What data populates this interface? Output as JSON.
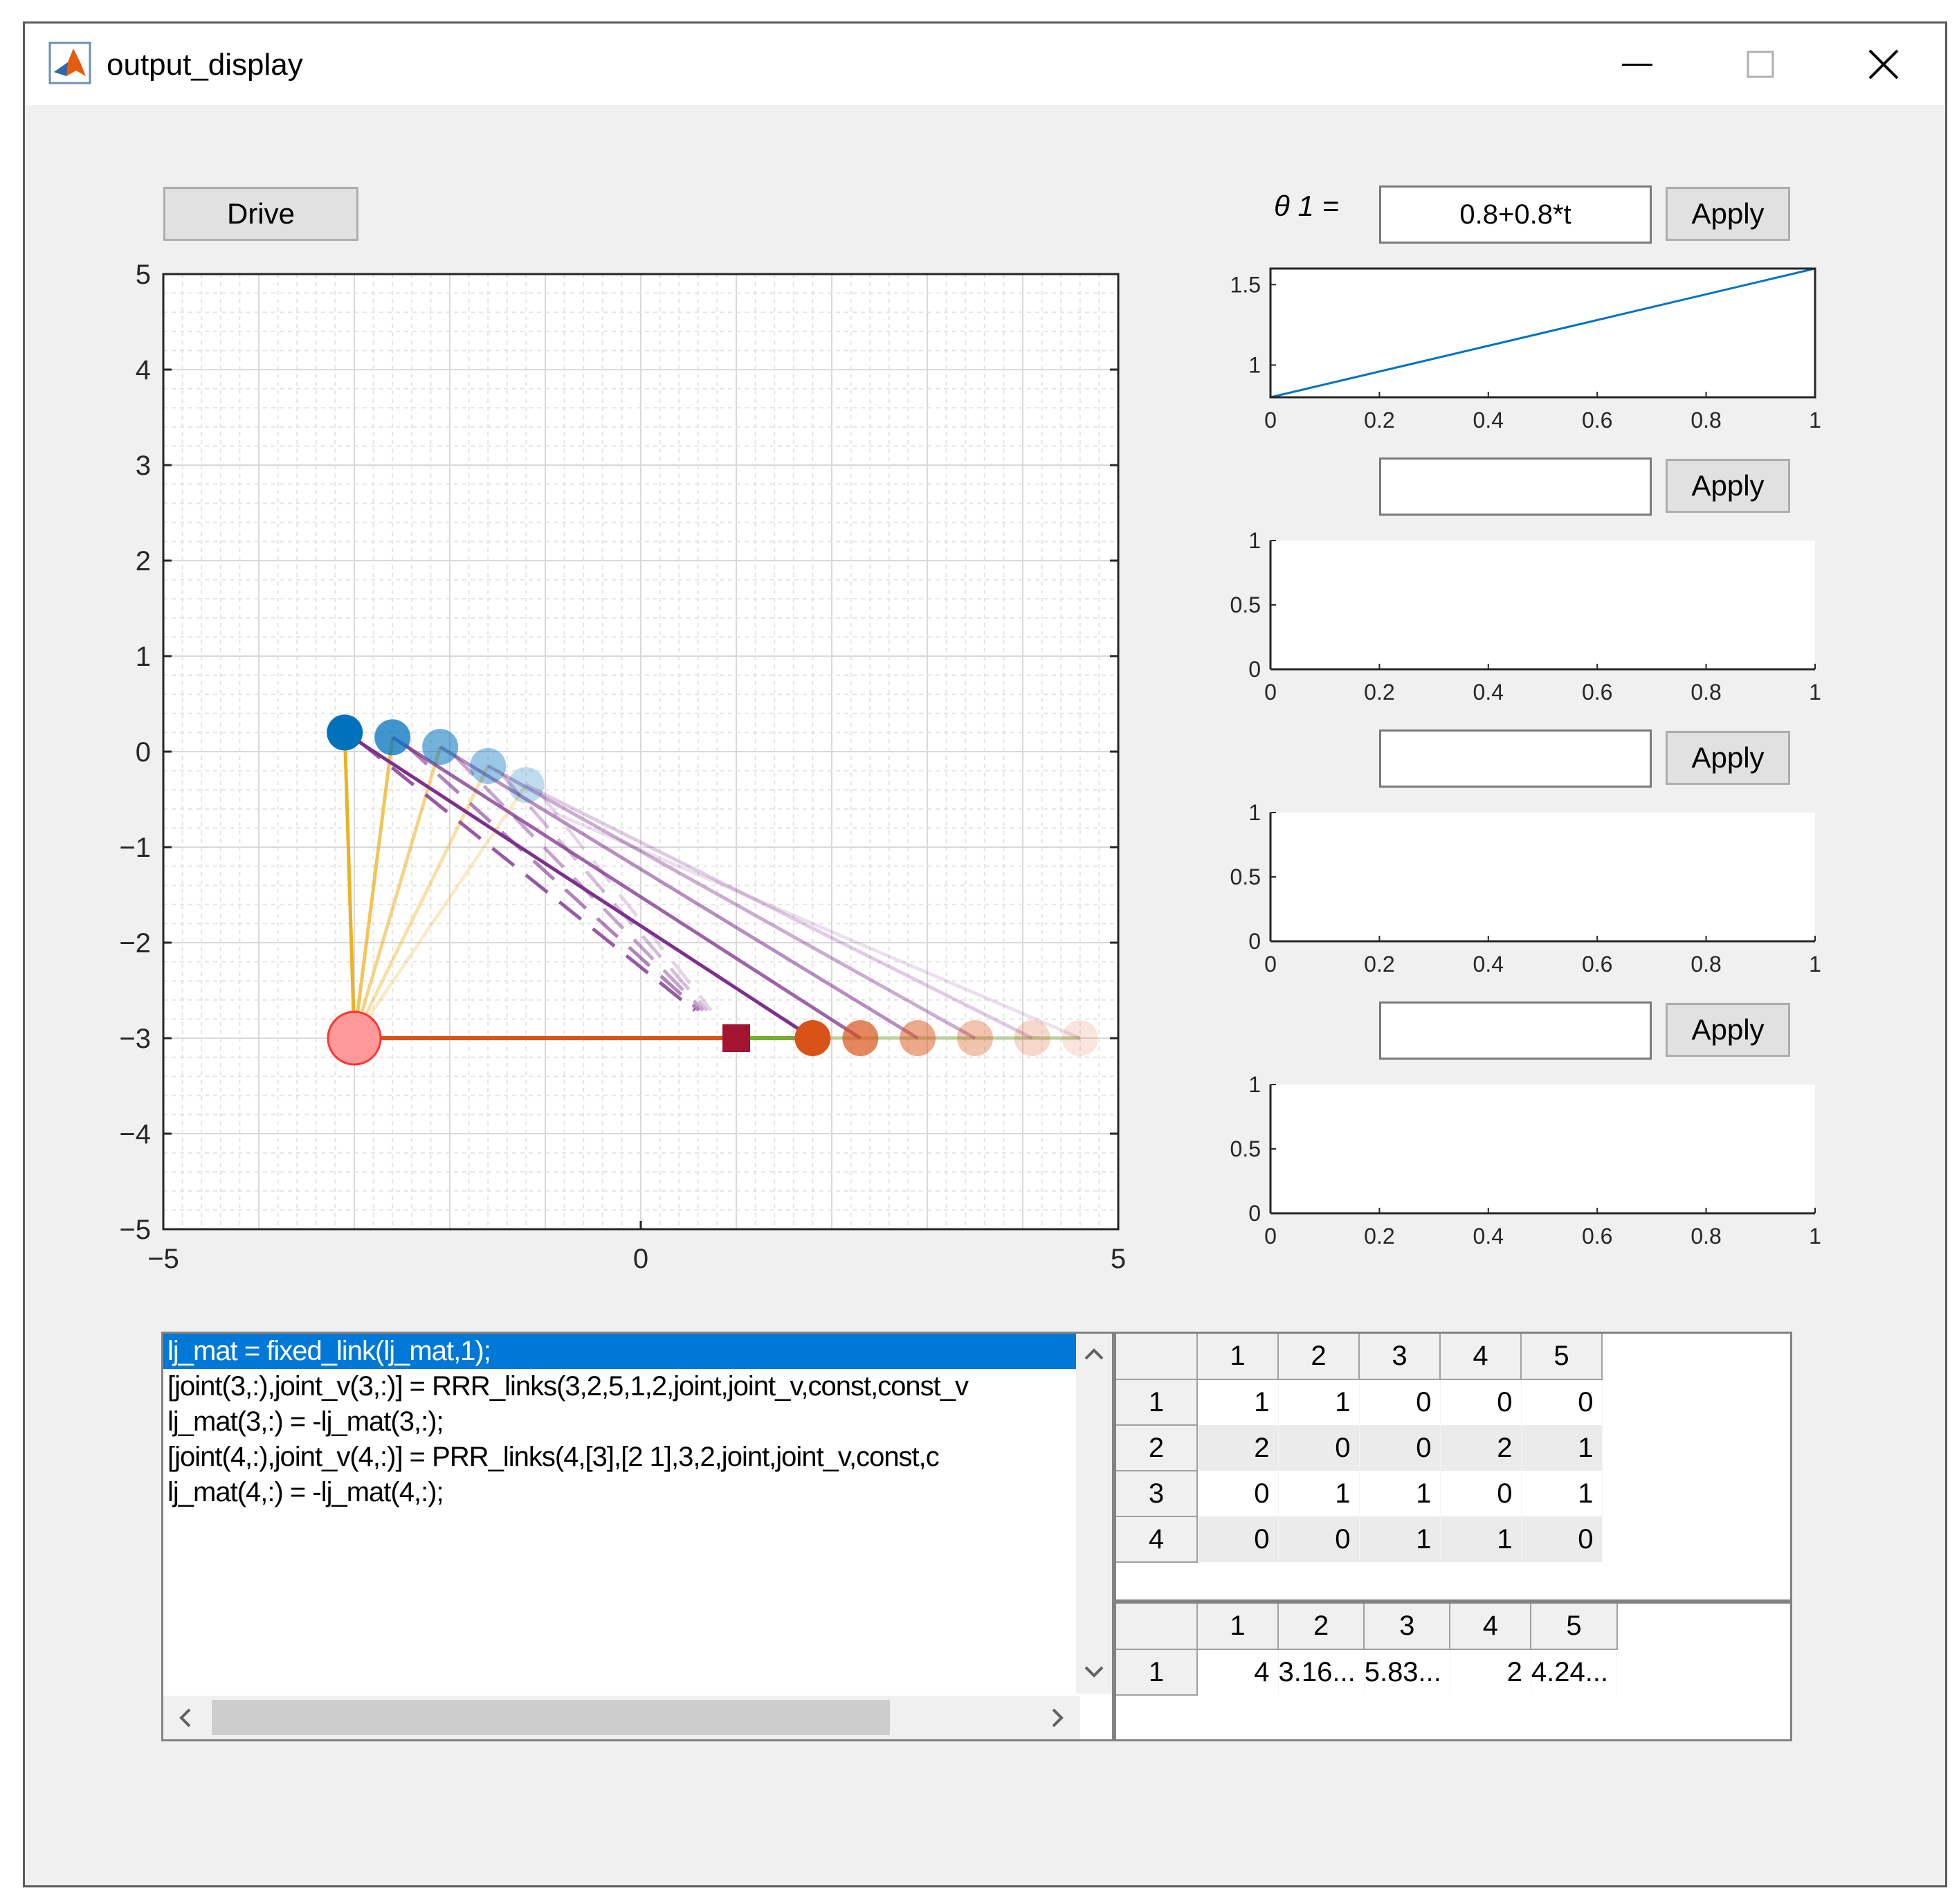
{
  "window": {
    "title": "output_display"
  },
  "controls": {
    "drive_label": "Drive",
    "theta_label": "θ 1 =",
    "inputs": [
      {
        "value": "0.8+0.8*t",
        "apply_label": "Apply"
      },
      {
        "value": "",
        "apply_label": "Apply"
      },
      {
        "value": "",
        "apply_label": "Apply"
      },
      {
        "value": "",
        "apply_label": "Apply"
      }
    ]
  },
  "main_plot": {
    "xlim": [
      -5,
      5
    ],
    "ylim": [
      -5,
      5
    ],
    "xticks": [
      "−5",
      "0",
      "5"
    ],
    "yticks": [
      "5",
      "4",
      "3",
      "2",
      "1",
      "0",
      "−1",
      "−2",
      "−3",
      "−4",
      "−5"
    ],
    "grid": true,
    "minor_grid": true,
    "ground_joint": {
      "x": -3,
      "y": -3,
      "color": "#ff9999"
    },
    "slider_block": {
      "x": 1,
      "y": -3,
      "color": "#a2142f"
    },
    "crank_tips": [
      {
        "x": -3.1,
        "y": 0.2,
        "alpha": 1.0
      },
      {
        "x": -2.6,
        "y": 0.15,
        "alpha": 0.75
      },
      {
        "x": -2.1,
        "y": 0.05,
        "alpha": 0.55
      },
      {
        "x": -1.6,
        "y": -0.15,
        "alpha": 0.4
      },
      {
        "x": -1.2,
        "y": -0.35,
        "alpha": 0.25
      }
    ],
    "slider_positions": [
      {
        "x": 1.8,
        "y": -3,
        "alpha": 1.0
      },
      {
        "x": 2.3,
        "y": -3,
        "alpha": 0.7
      },
      {
        "x": 2.9,
        "y": -3,
        "alpha": 0.5
      },
      {
        "x": 3.5,
        "y": -3,
        "alpha": 0.35
      },
      {
        "x": 4.1,
        "y": -3,
        "alpha": 0.22
      },
      {
        "x": 4.6,
        "y": -3,
        "alpha": 0.15
      }
    ],
    "colors": {
      "crank": "#edb120",
      "coupler": "#7e2f8e",
      "tip": "#0072bd",
      "slider": "#d95319",
      "ground": "#d95319",
      "ground_green": "#77ac30"
    }
  },
  "side_plots": [
    {
      "xticks": [
        "0",
        "0.2",
        "0.4",
        "0.6",
        "0.8",
        "1"
      ],
      "yticks": [
        "1.5",
        "1"
      ],
      "ylim": [
        0.8,
        1.6
      ],
      "line": {
        "x": [
          0,
          1
        ],
        "y": [
          0.8,
          1.6
        ],
        "color": "#0072bd"
      }
    },
    {
      "xticks": [
        "0",
        "0.2",
        "0.4",
        "0.6",
        "0.8",
        "1"
      ],
      "yticks": [
        "1",
        "0.5",
        "0"
      ],
      "ylim": [
        0,
        1
      ]
    },
    {
      "xticks": [
        "0",
        "0.2",
        "0.4",
        "0.6",
        "0.8",
        "1"
      ],
      "yticks": [
        "1",
        "0.5",
        "0"
      ],
      "ylim": [
        0,
        1
      ]
    },
    {
      "xticks": [
        "0",
        "0.2",
        "0.4",
        "0.6",
        "0.8",
        "1"
      ],
      "yticks": [
        "1",
        "0.5",
        "0"
      ],
      "ylim": [
        0,
        1
      ]
    }
  ],
  "code_list": {
    "lines": [
      "lj_mat = fixed_link(lj_mat,1);",
      "[joint(3,:),joint_v(3,:)] = RRR_links(3,2,5,1,2,joint,joint_v,const,const_v",
      "lj_mat(3,:) = -lj_mat(3,:);",
      "[joint(4,:),joint_v(4,:)] = PRR_links(4,[3],[2   1],3,2,joint,joint_v,const,c",
      "lj_mat(4,:) = -lj_mat(4,:);"
    ],
    "selected": 0
  },
  "table1": {
    "columns": [
      "1",
      "2",
      "3",
      "4",
      "5"
    ],
    "rows": [
      {
        "label": "1",
        "cells": [
          "1",
          "1",
          "0",
          "0",
          "0"
        ]
      },
      {
        "label": "2",
        "cells": [
          "2",
          "0",
          "0",
          "2",
          "1"
        ]
      },
      {
        "label": "3",
        "cells": [
          "0",
          "1",
          "1",
          "0",
          "1"
        ]
      },
      {
        "label": "4",
        "cells": [
          "0",
          "0",
          "1",
          "1",
          "0"
        ]
      }
    ]
  },
  "table2": {
    "columns": [
      "1",
      "2",
      "3",
      "4",
      "5"
    ],
    "rows": [
      {
        "label": "1",
        "cells": [
          "4",
          "3.16...",
          "5.83...",
          "2",
          "4.24..."
        ]
      }
    ]
  }
}
